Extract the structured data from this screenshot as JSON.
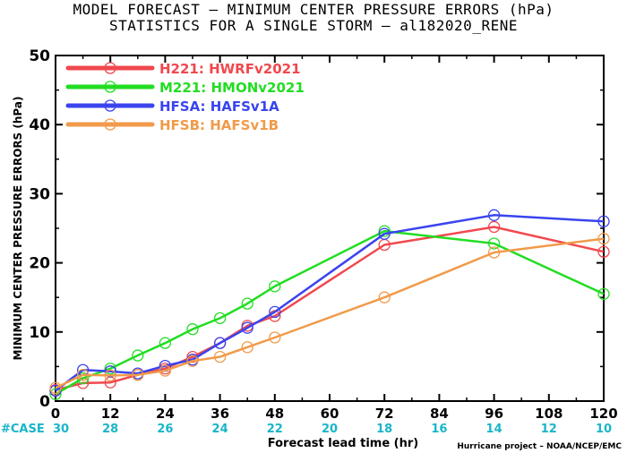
{
  "chart_data": {
    "type": "line",
    "title": "MODEL FORECAST – MINIMUM CENTER PRESSURE ERRORS (hPa)",
    "subtitle": "STATISTICS FOR A SINGLE STORM – al182020_RENE",
    "xlabel": "Forecast lead time (hr)",
    "ylabel": "MINIMUM CENTER PRESSURE ERRORS (hPa)",
    "xlim": [
      0,
      120
    ],
    "ylim": [
      0,
      50
    ],
    "x_ticks": [
      0,
      12,
      24,
      36,
      48,
      60,
      72,
      84,
      96,
      108,
      120
    ],
    "y_ticks": [
      0,
      10,
      20,
      30,
      40,
      50
    ],
    "legend_position": "top-left",
    "series": [
      {
        "name": "H221:  HWRFv2021",
        "color": "#f0484e",
        "x": [
          0,
          6,
          12,
          18,
          24,
          30,
          36,
          42,
          48,
          72,
          96,
          120
        ],
        "y": [
          1.6,
          2.6,
          2.7,
          3.8,
          4.7,
          6.4,
          8.4,
          10.9,
          12.3,
          22.6,
          25.2,
          21.6
        ]
      },
      {
        "name": "M221:  HMONv2021",
        "color": "#22dd22",
        "x": [
          0,
          6,
          12,
          18,
          24,
          30,
          36,
          42,
          48,
          72,
          96,
          120
        ],
        "y": [
          1.0,
          3.3,
          4.7,
          6.6,
          8.4,
          10.4,
          12.0,
          14.1,
          16.6,
          24.6,
          22.8,
          15.5
        ]
      },
      {
        "name": "HFSA:  HAFSv1A",
        "color": "#3a44ee",
        "x": [
          0,
          6,
          12,
          18,
          24,
          30,
          36,
          42,
          48,
          72,
          96,
          120
        ],
        "y": [
          1.5,
          4.5,
          4.3,
          4.0,
          5.1,
          6.0,
          8.4,
          10.6,
          12.9,
          24.2,
          26.9,
          26.0
        ]
      },
      {
        "name": "HFSB:  HAFSv1B",
        "color": "#f19a4a",
        "x": [
          0,
          6,
          12,
          18,
          24,
          30,
          36,
          42,
          48,
          72,
          96,
          120
        ],
        "y": [
          1.9,
          3.8,
          3.7,
          3.8,
          4.4,
          5.8,
          6.4,
          7.8,
          9.2,
          15.0,
          21.5,
          23.5
        ]
      }
    ],
    "case_label": "#CASE",
    "case_counts": [
      30,
      28,
      26,
      24,
      22,
      20,
      18,
      16,
      14,
      12,
      10
    ],
    "case_color": "#19b5c8",
    "credit": "Hurricane project – NOAA/NCEP/EMC"
  }
}
